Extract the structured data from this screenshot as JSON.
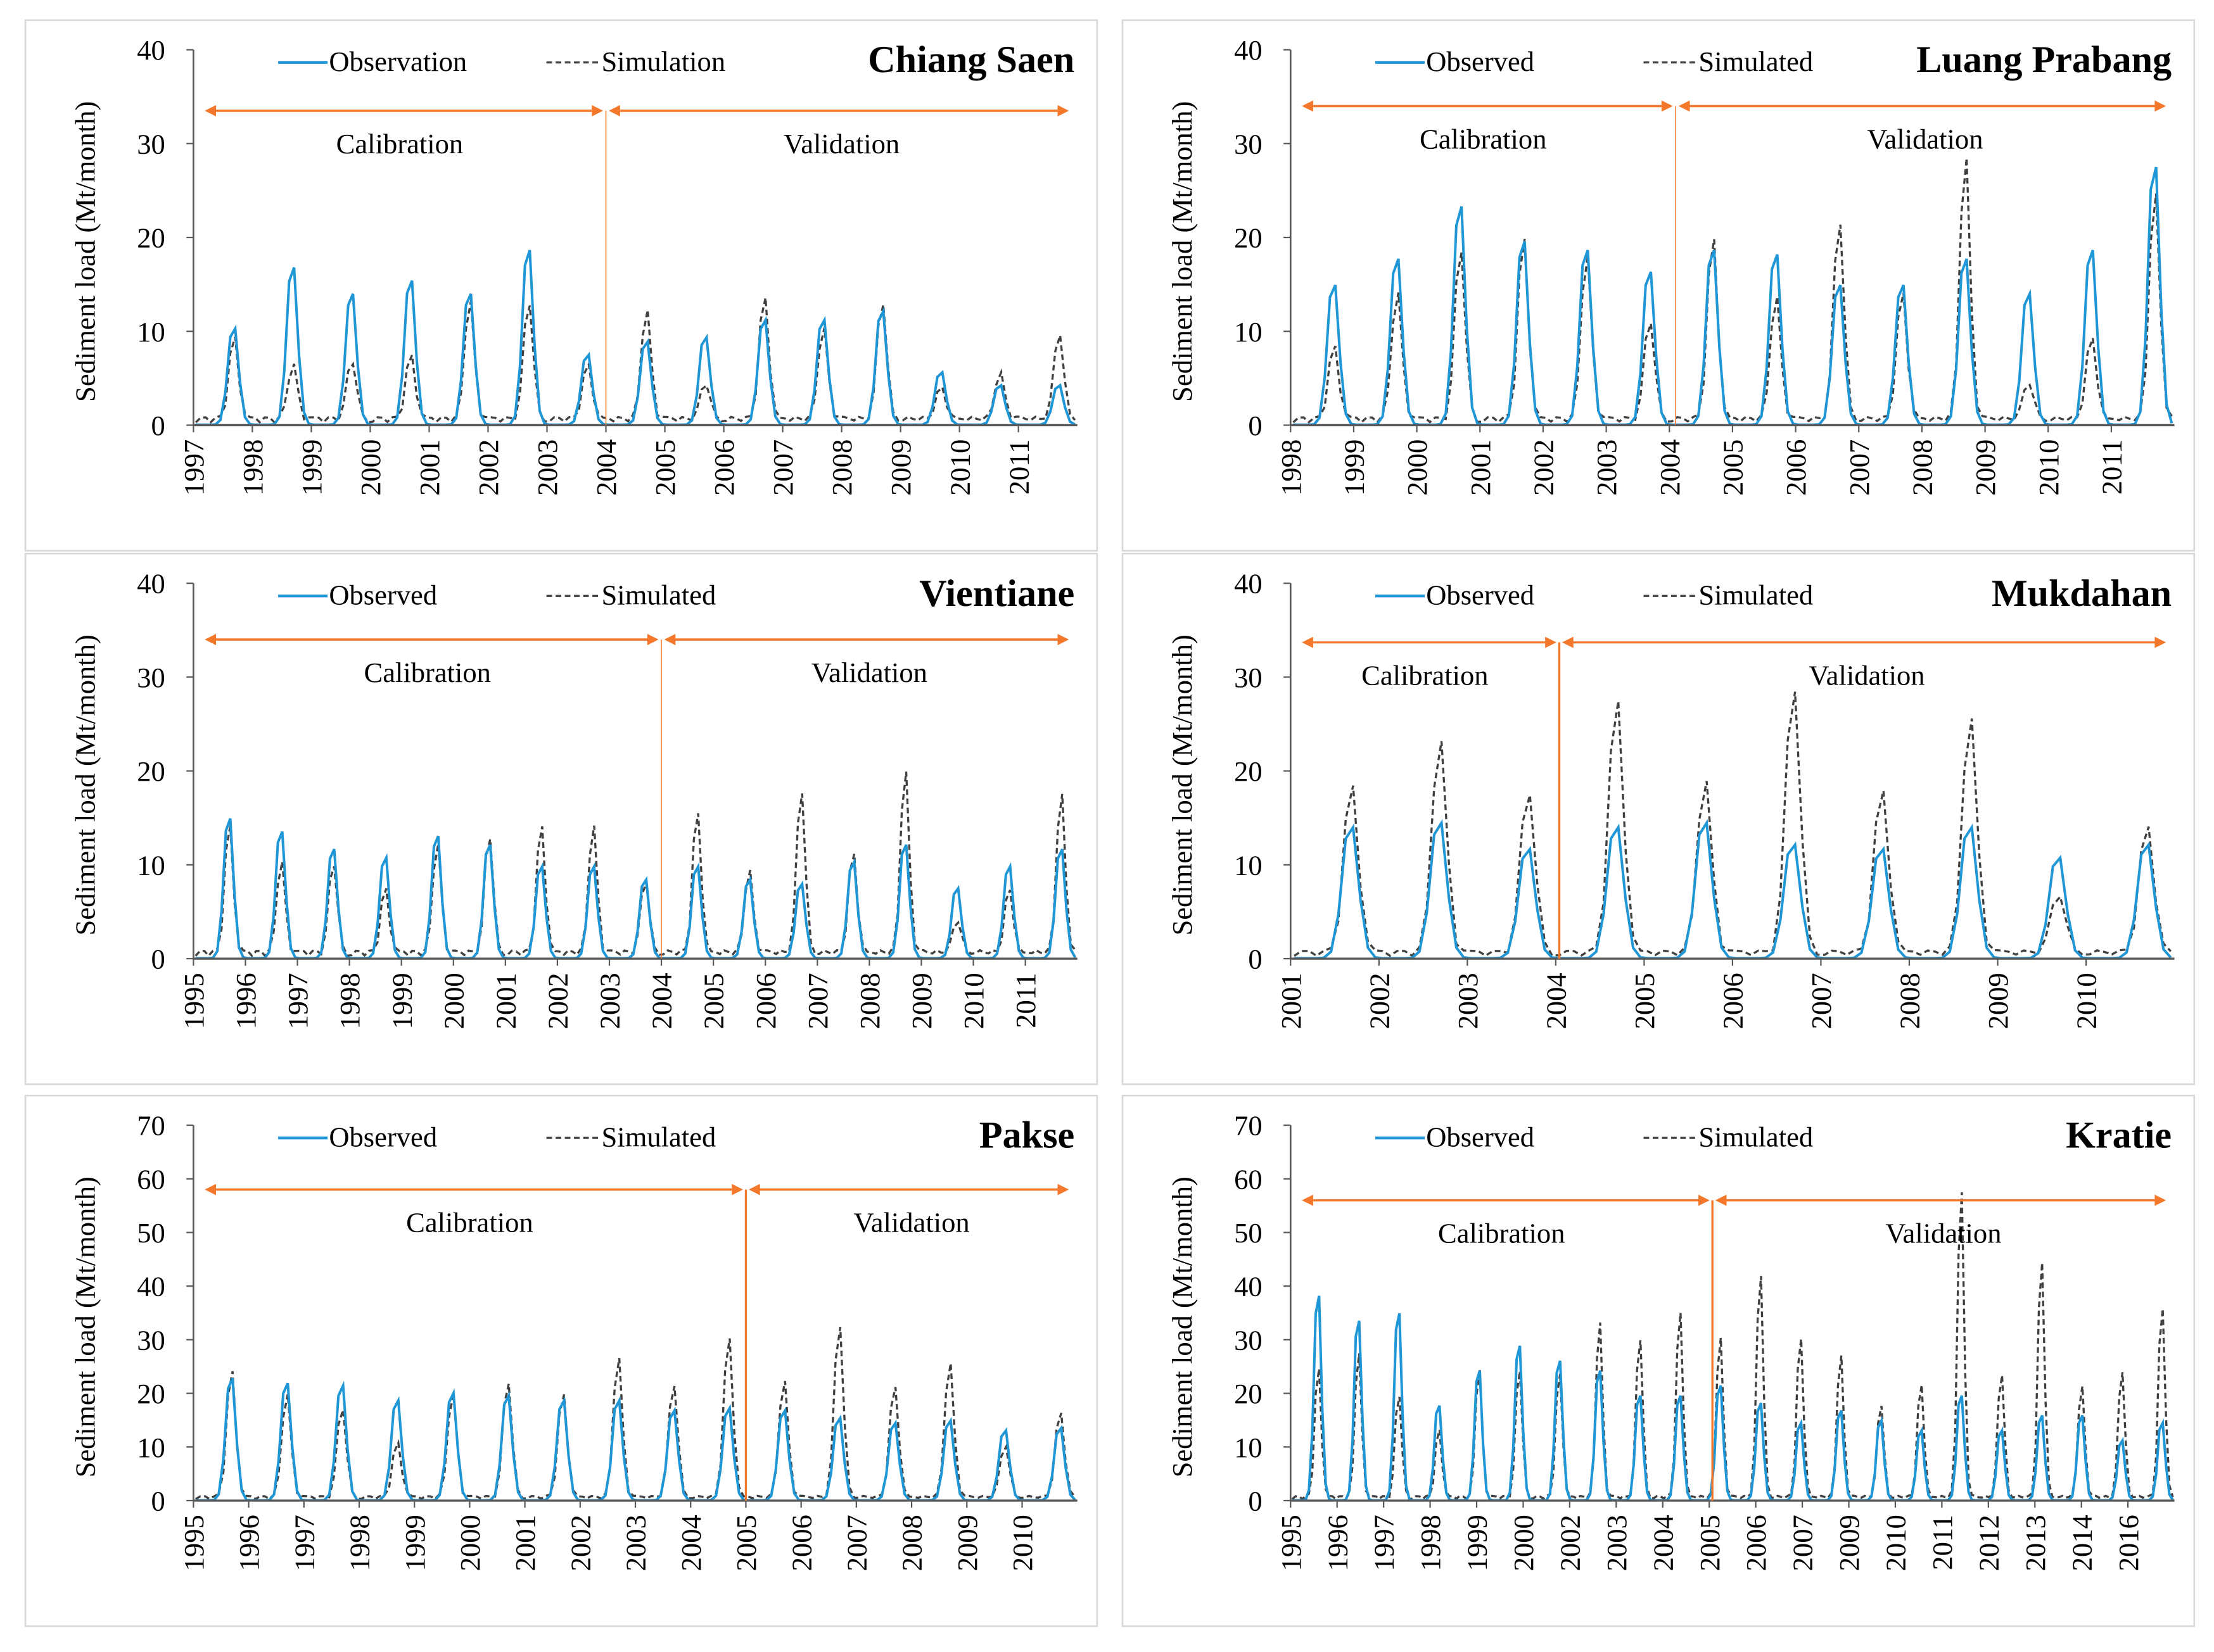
{
  "colors": {
    "observed": "#1f97d7",
    "simulated": "#404040",
    "arrow": "#f4782b",
    "axis": "#595959"
  },
  "chart_data": [
    {
      "type": "line",
      "title": "Chiang Saen",
      "ylabel": "Sediment load (Mt/month)",
      "ylim": [
        0,
        40
      ],
      "yticks": [
        0,
        10,
        20,
        30,
        40
      ],
      "legend": [
        "Observation",
        "Simulation"
      ],
      "legend_position": "top",
      "periods": {
        "calibration": "Calibration",
        "validation": "Validation",
        "calibration_end_index": 7,
        "arrow_level": 33.5
      },
      "start_year": 1997,
      "n_years": 15,
      "xticks": [
        "1997",
        "1998",
        "1999",
        "2000",
        "2001",
        "2002",
        "2003",
        "2004",
        "2005",
        "2006",
        "2007",
        "2008",
        "2009",
        "2010",
        "2011"
      ],
      "annual_peak_observed": [
        11,
        18,
        15,
        16.5,
        15,
        20,
        8,
        9.5,
        10,
        12,
        12,
        13,
        6,
        4.5,
        4.5
      ],
      "annual_peak_simulated": [
        9,
        6,
        6.5,
        7,
        13,
        13,
        6,
        12,
        4,
        13.5,
        10,
        13,
        3.5,
        5,
        9.5
      ]
    },
    {
      "type": "line",
      "title": "Luang Prabang",
      "ylabel": "Sediment load (Mt/month)",
      "ylim": [
        0,
        40
      ],
      "yticks": [
        0,
        10,
        20,
        30,
        40
      ],
      "legend": [
        "Observed",
        "Simulated"
      ],
      "legend_position": "top",
      "periods": {
        "calibration": "Calibration",
        "validation": "Validation",
        "calibration_end_index": 6.1,
        "arrow_level": 34
      },
      "start_year": 1998,
      "n_years": 14,
      "xticks": [
        "1998",
        "1999",
        "2000",
        "2001",
        "2002",
        "2003",
        "2004",
        "2005",
        "2006",
        "2007",
        "2008",
        "2009",
        "2010",
        "2011"
      ],
      "annual_peak_observed": [
        16,
        19,
        25,
        21,
        20,
        17.5,
        20,
        19.5,
        16,
        16,
        19,
        15,
        20,
        29.5
      ],
      "annual_peak_simulated": [
        8,
        14,
        19,
        20,
        18,
        11,
        20,
        13.5,
        22,
        14,
        29,
        4,
        9,
        25
      ]
    },
    {
      "type": "line",
      "title": "Vientiane",
      "ylabel": "Sediment load (Mt/month)",
      "ylim": [
        0,
        40
      ],
      "yticks": [
        0,
        10,
        20,
        30,
        40
      ],
      "legend": [
        "Observed",
        "Simulated"
      ],
      "legend_position": "top",
      "periods": {
        "calibration": "Calibration",
        "validation": "Validation",
        "calibration_end_index": 9,
        "arrow_level": 34
      },
      "start_year": 1995,
      "n_years": 17,
      "xticks": [
        "1995",
        "1996",
        "1997",
        "1998",
        "1999",
        "2000",
        "2001",
        "2002",
        "2003",
        "2004",
        "2005",
        "2006",
        "2007",
        "2008",
        "2009",
        "2010",
        "2011"
      ],
      "annual_peak_observed": [
        16,
        14.5,
        12.5,
        11.5,
        14,
        13,
        10.5,
        10.5,
        9,
        10.5,
        9,
        8.5,
        11,
        13,
        8,
        10.5,
        12.5
      ],
      "annual_peak_simulated": [
        14,
        10,
        10,
        7,
        12,
        13,
        14,
        14,
        8,
        15.5,
        9,
        18,
        11,
        20,
        3.5,
        7,
        17.5
      ]
    },
    {
      "type": "line",
      "title": "Mukdahan",
      "ylabel": "Sediment load (Mt/month)",
      "ylim": [
        0,
        40
      ],
      "yticks": [
        0,
        10,
        20,
        30,
        40
      ],
      "legend": [
        "Observed",
        "Simulated"
      ],
      "legend_position": "top",
      "periods": {
        "calibration": "Calibration",
        "validation": "Validation",
        "calibration_end_index": 3.04,
        "arrow_level": 33.7
      },
      "start_year": 2001,
      "n_years": 10,
      "xticks": [
        "2001",
        "2002",
        "2003",
        "2004",
        "2005",
        "2006",
        "2007",
        "2008",
        "2009",
        "2010"
      ],
      "annual_peak_observed": [
        15,
        15.5,
        12.5,
        15,
        15.5,
        13,
        12.5,
        15,
        11.5,
        13
      ],
      "annual_peak_simulated": [
        18.5,
        23.5,
        18,
        28,
        19,
        29.5,
        18,
        26,
        6.5,
        14
      ]
    },
    {
      "type": "line",
      "title": "Pakse",
      "ylabel": "Sediment load (Mt/month)",
      "ylim": [
        0,
        70
      ],
      "yticks": [
        0,
        10,
        20,
        30,
        40,
        50,
        60,
        70
      ],
      "legend": [
        "Observed",
        "Simulated"
      ],
      "legend_position": "top",
      "periods": {
        "calibration": "Calibration",
        "validation": "Validation",
        "calibration_end_index": 10,
        "arrow_level": 58
      },
      "start_year": 1995,
      "n_years": 16,
      "xticks": [
        "1995",
        "1996",
        "1997",
        "1998",
        "1999",
        "2000",
        "2001",
        "2002",
        "2003",
        "2004",
        "2005",
        "2006",
        "2007",
        "2008",
        "2009",
        "2010"
      ],
      "annual_peak_observed": [
        24.5,
        23.5,
        23,
        20,
        21.5,
        21,
        20,
        20,
        18,
        18.5,
        18,
        16.5,
        15.5,
        16,
        14,
        14.5
      ],
      "annual_peak_simulated": [
        24.5,
        20,
        17.5,
        10.5,
        20,
        22.5,
        20,
        27,
        22,
        31,
        22.5,
        33.5,
        21.5,
        26,
        10,
        16.5
      ]
    },
    {
      "type": "line",
      "title": "Kratie",
      "ylabel": "Sediment load (Mt/month)",
      "ylim": [
        0,
        70
      ],
      "yticks": [
        0,
        10,
        20,
        30,
        40,
        50,
        60,
        70
      ],
      "legend": [
        "Observed",
        "Simulated"
      ],
      "legend_position": "top",
      "periods": {
        "calibration": "Calibration",
        "validation": "Validation",
        "calibration_end_index": 10.5,
        "arrow_level": 56
      },
      "start_year": 1995,
      "n_years": 22,
      "xticks": [
        "1995",
        "1996",
        "1997",
        "1998",
        "1999",
        "2000",
        "2002",
        "2003",
        "2004",
        "2005",
        "2006",
        "2007",
        "2009",
        "2010",
        "2011",
        "2012",
        "2013",
        "2014",
        "2016"
      ],
      "annual_peak_observed": [
        41,
        36,
        37.5,
        19,
        26,
        31,
        28,
        26,
        21,
        21,
        23,
        19.5,
        15.5,
        18,
        16,
        14,
        21,
        14,
        17,
        17,
        12,
        15.5
      ],
      "annual_peak_simulated": [
        25,
        28,
        20,
        13,
        25,
        25,
        24,
        34,
        31,
        36,
        31,
        43.5,
        31,
        27.5,
        18,
        22,
        59.5,
        24,
        46,
        21.5,
        24.5,
        37
      ]
    }
  ]
}
